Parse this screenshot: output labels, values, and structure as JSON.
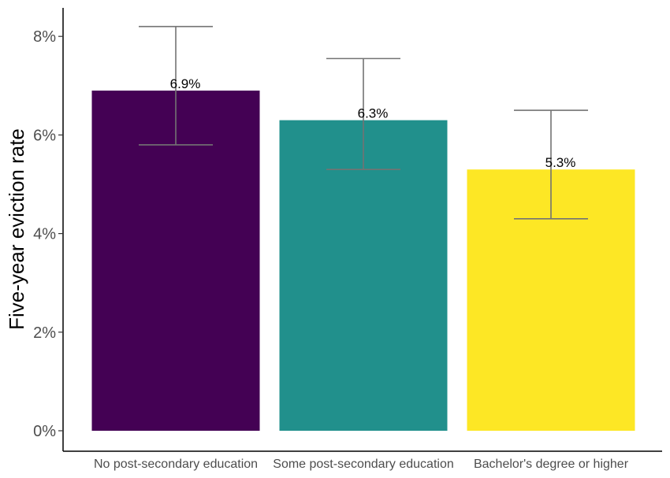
{
  "chart_data": {
    "type": "bar",
    "title": "",
    "xlabel": "",
    "ylabel": "Five-year eviction rate",
    "categories": [
      "No post-secondary education",
      "Some post-secondary education",
      "Bachelor's degree or higher"
    ],
    "values": [
      6.9,
      6.3,
      5.3
    ],
    "value_labels": [
      "6.9%",
      "6.3%",
      "5.3%"
    ],
    "error_low": [
      5.8,
      5.3,
      4.3
    ],
    "error_high": [
      8.2,
      7.55,
      6.5
    ],
    "colors": [
      "#440154",
      "#21908C",
      "#FDE725"
    ],
    "error_bar_color": "#737373",
    "y_ticks": [
      0,
      2,
      4,
      6,
      8
    ],
    "y_tick_labels": [
      "0%",
      "2%",
      "4%",
      "6%",
      "8%"
    ],
    "ylim": [
      0,
      8.6
    ],
    "grid": false,
    "legend": "none"
  }
}
